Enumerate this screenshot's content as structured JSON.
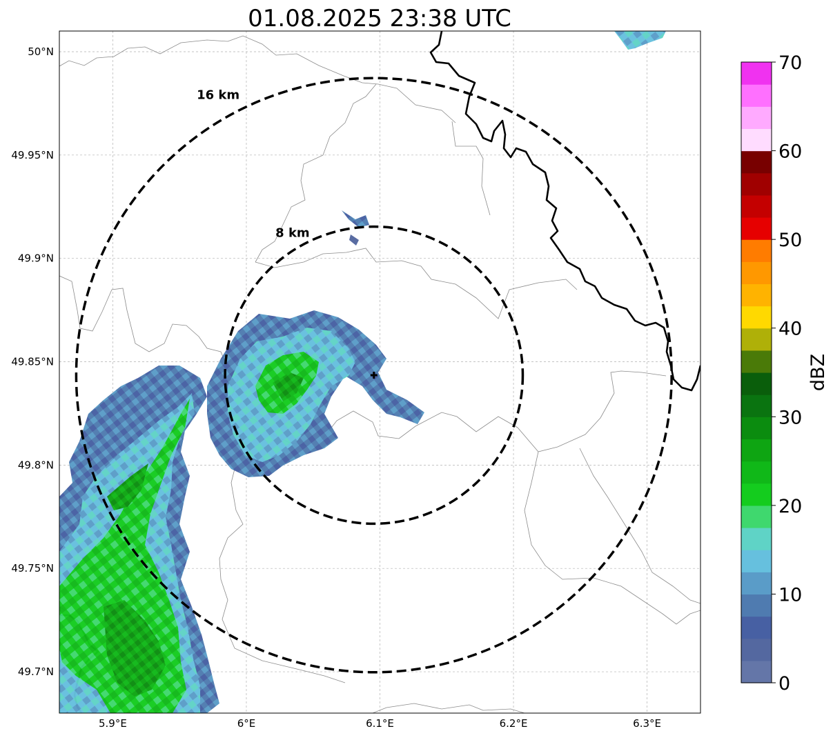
{
  "title": "01.08.2025 23:38 UTC",
  "map": {
    "lon_range": [
      5.86,
      6.34
    ],
    "lat_range": [
      49.68,
      50.01
    ],
    "x_ticks": [
      {
        "value": 5.9,
        "label": "5.9°E"
      },
      {
        "value": 6.0,
        "label": "6°E"
      },
      {
        "value": 6.1,
        "label": "6.1°E"
      },
      {
        "value": 6.2,
        "label": "6.2°E"
      },
      {
        "value": 6.3,
        "label": "6.3°E"
      }
    ],
    "y_ticks": [
      {
        "value": 50.0,
        "label": "50°N"
      },
      {
        "value": 49.95,
        "label": "49.95°N"
      },
      {
        "value": 49.9,
        "label": "49.9°N"
      },
      {
        "value": 49.85,
        "label": "49.85°N"
      },
      {
        "value": 49.8,
        "label": "49.8°N"
      },
      {
        "value": 49.75,
        "label": "49.75°N"
      },
      {
        "value": 49.7,
        "label": "49.7°N"
      }
    ],
    "gridlines": true,
    "radar_site": {
      "lon": 6.0955,
      "lat": 49.8435,
      "marker": "plus"
    },
    "range_rings": [
      {
        "radius_km": 8,
        "label": "8 km"
      },
      {
        "radius_km": 16,
        "label": "16 km"
      }
    ]
  },
  "colorbar": {
    "label": "dBZ",
    "min": 0,
    "max": 70,
    "tick_values": [
      0,
      10,
      20,
      30,
      40,
      50,
      60,
      70
    ],
    "tick_labels": [
      "0",
      "10",
      "20",
      "30",
      "40",
      "50",
      "60",
      "70"
    ],
    "colors": [
      "#6476a8",
      "#5468a0",
      "#4760a3",
      "#4f7bb0",
      "#5a9cc8",
      "#66c0de",
      "#5fd3c6",
      "#3fd86e",
      "#14cc1e",
      "#10b818",
      "#0ea512",
      "#0b8c0f",
      "#0a7410",
      "#0a5e0b",
      "#4a7a08",
      "#afb008",
      "#ffd900",
      "#ffb300",
      "#ff9800",
      "#ff7c00",
      "#e60000",
      "#c40000",
      "#a00000",
      "#780000",
      "#ffdcff",
      "#ffaaff",
      "#ff70ff",
      "#f032f0"
    ]
  }
}
